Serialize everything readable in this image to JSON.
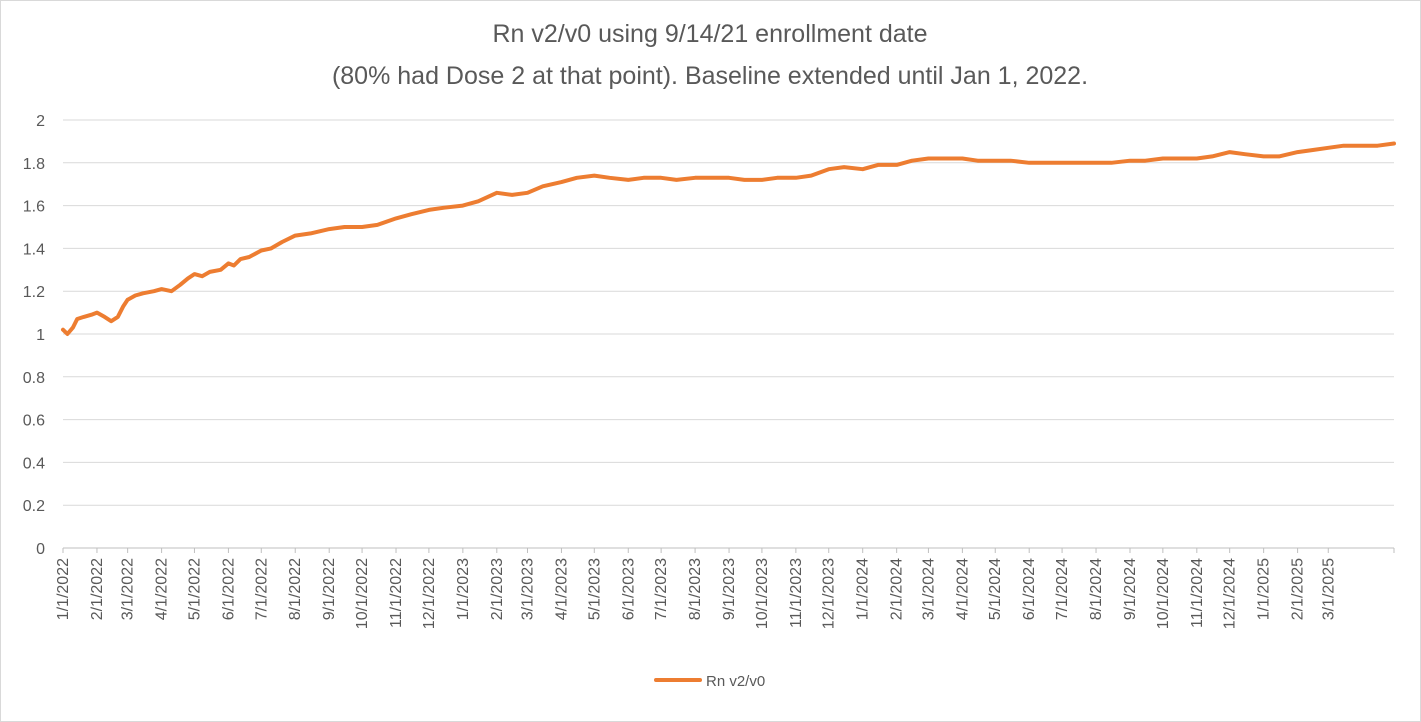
{
  "chart_data": {
    "type": "line",
    "title": [
      "Rn v2/v0 using 9/14/21 enrollment date",
      "(80% had Dose 2 at that point). Baseline extended until Jan 1, 2022."
    ],
    "xlabel": "",
    "ylabel": "",
    "ylim": [
      0,
      2
    ],
    "yticks": [
      "0",
      "0.2",
      "0.4",
      "0.6",
      "0.8",
      "1",
      "1.2",
      "1.4",
      "1.6",
      "1.8",
      "2"
    ],
    "xlim": [
      "2022-01-01",
      "2025-04-30"
    ],
    "xtick_labels": [
      "1/1/2022",
      "2/1/2022",
      "3/1/2022",
      "4/1/2022",
      "5/1/2022",
      "6/1/2022",
      "7/1/2022",
      "8/1/2022",
      "9/1/2022",
      "10/1/2022",
      "11/1/2022",
      "12/1/2022",
      "1/1/2023",
      "2/1/2023",
      "3/1/2023",
      "4/1/2023",
      "5/1/2023",
      "6/1/2023",
      "7/1/2023",
      "8/1/2023",
      "9/1/2023",
      "10/1/2023",
      "11/1/2023",
      "12/1/2023",
      "1/1/2024",
      "2/1/2024",
      "3/1/2024",
      "4/1/2024",
      "5/1/2024",
      "6/1/2024",
      "7/1/2024",
      "8/1/2024",
      "9/1/2024",
      "10/1/2024",
      "11/1/2024",
      "12/1/2024",
      "1/1/2025",
      "2/1/2025",
      "3/1/2025"
    ],
    "grid": true,
    "legend": "bottom",
    "series": [
      {
        "name": "Rn v2/v0",
        "color": "#ed7d31",
        "points": [
          [
            "2022-01-01",
            1.02
          ],
          [
            "2022-01-05",
            1.0
          ],
          [
            "2022-01-10",
            1.03
          ],
          [
            "2022-01-14",
            1.07
          ],
          [
            "2022-01-20",
            1.08
          ],
          [
            "2022-01-27",
            1.09
          ],
          [
            "2022-02-01",
            1.1
          ],
          [
            "2022-02-08",
            1.08
          ],
          [
            "2022-02-14",
            1.06
          ],
          [
            "2022-02-20",
            1.08
          ],
          [
            "2022-02-25",
            1.13
          ],
          [
            "2022-03-01",
            1.16
          ],
          [
            "2022-03-08",
            1.18
          ],
          [
            "2022-03-15",
            1.19
          ],
          [
            "2022-03-25",
            1.2
          ],
          [
            "2022-04-01",
            1.21
          ],
          [
            "2022-04-10",
            1.2
          ],
          [
            "2022-04-18",
            1.23
          ],
          [
            "2022-04-25",
            1.26
          ],
          [
            "2022-05-01",
            1.28
          ],
          [
            "2022-05-08",
            1.27
          ],
          [
            "2022-05-15",
            1.29
          ],
          [
            "2022-05-25",
            1.3
          ],
          [
            "2022-06-01",
            1.33
          ],
          [
            "2022-06-06",
            1.32
          ],
          [
            "2022-06-12",
            1.35
          ],
          [
            "2022-06-20",
            1.36
          ],
          [
            "2022-07-01",
            1.39
          ],
          [
            "2022-07-10",
            1.4
          ],
          [
            "2022-07-20",
            1.43
          ],
          [
            "2022-08-01",
            1.46
          ],
          [
            "2022-08-15",
            1.47
          ],
          [
            "2022-09-01",
            1.49
          ],
          [
            "2022-09-15",
            1.5
          ],
          [
            "2022-10-01",
            1.5
          ],
          [
            "2022-10-15",
            1.51
          ],
          [
            "2022-11-01",
            1.54
          ],
          [
            "2022-11-15",
            1.56
          ],
          [
            "2022-12-01",
            1.58
          ],
          [
            "2022-12-15",
            1.59
          ],
          [
            "2023-01-01",
            1.6
          ],
          [
            "2023-01-15",
            1.62
          ],
          [
            "2023-02-01",
            1.66
          ],
          [
            "2023-02-15",
            1.65
          ],
          [
            "2023-03-01",
            1.66
          ],
          [
            "2023-03-15",
            1.69
          ],
          [
            "2023-04-01",
            1.71
          ],
          [
            "2023-04-15",
            1.73
          ],
          [
            "2023-05-01",
            1.74
          ],
          [
            "2023-05-15",
            1.73
          ],
          [
            "2023-06-01",
            1.72
          ],
          [
            "2023-06-15",
            1.73
          ],
          [
            "2023-07-01",
            1.73
          ],
          [
            "2023-07-15",
            1.72
          ],
          [
            "2023-08-01",
            1.73
          ],
          [
            "2023-08-15",
            1.73
          ],
          [
            "2023-09-01",
            1.73
          ],
          [
            "2023-09-15",
            1.72
          ],
          [
            "2023-10-01",
            1.72
          ],
          [
            "2023-10-15",
            1.73
          ],
          [
            "2023-11-01",
            1.73
          ],
          [
            "2023-11-15",
            1.74
          ],
          [
            "2023-12-01",
            1.77
          ],
          [
            "2023-12-15",
            1.78
          ],
          [
            "2024-01-01",
            1.77
          ],
          [
            "2024-01-15",
            1.79
          ],
          [
            "2024-02-01",
            1.79
          ],
          [
            "2024-02-15",
            1.81
          ],
          [
            "2024-03-01",
            1.82
          ],
          [
            "2024-03-15",
            1.82
          ],
          [
            "2024-04-01",
            1.82
          ],
          [
            "2024-04-15",
            1.81
          ],
          [
            "2024-05-01",
            1.81
          ],
          [
            "2024-05-15",
            1.81
          ],
          [
            "2024-06-01",
            1.8
          ],
          [
            "2024-06-15",
            1.8
          ],
          [
            "2024-07-01",
            1.8
          ],
          [
            "2024-07-15",
            1.8
          ],
          [
            "2024-08-01",
            1.8
          ],
          [
            "2024-08-15",
            1.8
          ],
          [
            "2024-09-01",
            1.81
          ],
          [
            "2024-09-15",
            1.81
          ],
          [
            "2024-10-01",
            1.82
          ],
          [
            "2024-10-15",
            1.82
          ],
          [
            "2024-11-01",
            1.82
          ],
          [
            "2024-11-15",
            1.83
          ],
          [
            "2024-12-01",
            1.85
          ],
          [
            "2024-12-15",
            1.84
          ],
          [
            "2025-01-01",
            1.83
          ],
          [
            "2025-01-15",
            1.83
          ],
          [
            "2025-02-01",
            1.85
          ],
          [
            "2025-02-15",
            1.86
          ],
          [
            "2025-03-01",
            1.87
          ],
          [
            "2025-03-15",
            1.88
          ],
          [
            "2025-04-01",
            1.88
          ],
          [
            "2025-04-15",
            1.88
          ],
          [
            "2025-04-30",
            1.89
          ]
        ]
      }
    ]
  }
}
